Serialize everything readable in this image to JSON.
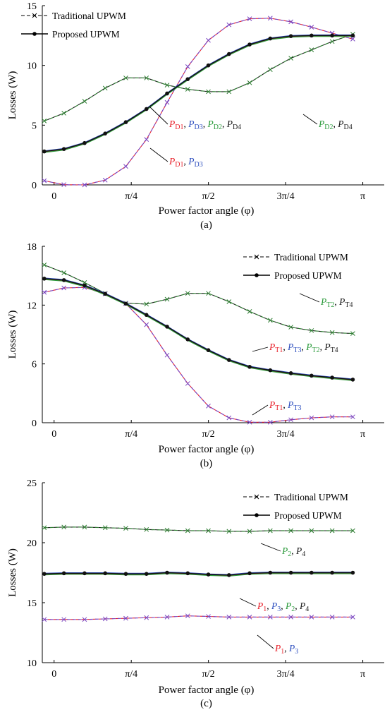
{
  "colors": {
    "phase1": "#e8202a",
    "phase3": "#2e4fbf",
    "phase2": "#2a9a3a",
    "phase4": "#1a1a1a",
    "trad_top": "#2e7d32",
    "trad_bottom": "#7a45c0",
    "proposed": "#111111"
  },
  "chart_data": [
    {
      "type": "line",
      "caption": "(a)",
      "xlabel": "Power factor angle (φ)",
      "ylabel": "Losses (W)",
      "xlim": [
        -0.12,
        3.36
      ],
      "ylim": [
        0,
        15
      ],
      "yticks": [
        0,
        5,
        10,
        15
      ],
      "ytick_labels": [
        "0",
        "5",
        "10",
        "15"
      ],
      "xticks": [
        0,
        0.7854,
        1.5708,
        2.3562,
        3.1416
      ],
      "xtick_labels": [
        "0",
        "π/4",
        "π/2",
        "3π/4",
        "π"
      ],
      "legend": {
        "position": "top-left",
        "entries": [
          {
            "label": "Traditional UPWM",
            "style": "trad"
          },
          {
            "label": "Proposed UPWM",
            "style": "prop"
          }
        ]
      },
      "x": [
        -0.1,
        0.1,
        0.31,
        0.52,
        0.73,
        0.94,
        1.15,
        1.36,
        1.57,
        1.78,
        1.99,
        2.2,
        2.41,
        2.62,
        2.83,
        3.04
      ],
      "series": [
        {
          "group": "trad-high",
          "color_key": "trad_top",
          "values": [
            5.35,
            6.0,
            7.0,
            8.1,
            8.95,
            8.95,
            8.35,
            8.0,
            7.8,
            7.8,
            8.55,
            9.65,
            10.6,
            11.3,
            12.0,
            12.6
          ],
          "style": "dashed-x"
        },
        {
          "group": "trad-low",
          "color_key": "trad_bottom",
          "values": [
            0.35,
            0.02,
            0.0,
            0.4,
            1.55,
            3.8,
            6.9,
            9.9,
            12.1,
            13.4,
            13.9,
            13.95,
            13.65,
            13.2,
            12.7,
            12.2
          ],
          "style": "dashed-x"
        },
        {
          "group": "prop",
          "color_key": "proposed",
          "values": [
            2.8,
            3.0,
            3.5,
            4.3,
            5.25,
            6.35,
            7.65,
            8.85,
            10.0,
            10.95,
            11.75,
            12.25,
            12.45,
            12.5,
            12.5,
            12.5
          ],
          "style": "solid-dot"
        }
      ],
      "annotations": [
        {
          "label": "P_D2, P_D4"
        },
        {
          "label": "P_D1, P_D3, P_D2, P_D4"
        },
        {
          "label": "P_D1, P_D3"
        }
      ]
    },
    {
      "type": "line",
      "caption": "(b)",
      "xlabel": "Power factor angle (φ)",
      "ylabel": "Losses (W)",
      "xlim": [
        -0.12,
        3.36
      ],
      "ylim": [
        0,
        18
      ],
      "yticks": [
        0,
        6,
        12,
        18
      ],
      "ytick_labels": [
        "0",
        "6",
        "12",
        "18"
      ],
      "xticks": [
        0,
        0.7854,
        1.5708,
        2.3562,
        3.1416
      ],
      "xtick_labels": [
        "0",
        "π/4",
        "π/2",
        "3π/4",
        "π"
      ],
      "legend": {
        "position": "top-right",
        "entries": [
          {
            "label": "Traditional UPWM",
            "style": "trad"
          },
          {
            "label": "Proposed UPWM",
            "style": "prop"
          }
        ]
      },
      "x": [
        -0.1,
        0.1,
        0.31,
        0.52,
        0.73,
        0.94,
        1.15,
        1.36,
        1.57,
        1.78,
        1.99,
        2.2,
        2.41,
        2.62,
        2.83,
        3.04
      ],
      "series": [
        {
          "group": "trad-high",
          "color_key": "trad_top",
          "values": [
            16.1,
            15.3,
            14.3,
            13.2,
            12.2,
            12.1,
            12.6,
            13.2,
            13.2,
            12.35,
            11.35,
            10.45,
            9.75,
            9.4,
            9.2,
            9.1
          ],
          "style": "dashed-x"
        },
        {
          "group": "trad-low",
          "color_key": "trad_bottom",
          "values": [
            13.3,
            13.75,
            13.8,
            13.15,
            12.15,
            10.0,
            6.9,
            4.0,
            1.7,
            0.5,
            0.05,
            0.05,
            0.3,
            0.5,
            0.6,
            0.6
          ],
          "style": "dashed-x"
        },
        {
          "group": "prop",
          "color_key": "proposed",
          "values": [
            14.7,
            14.55,
            14.0,
            13.15,
            12.15,
            11.0,
            9.8,
            8.5,
            7.4,
            6.4,
            5.7,
            5.35,
            5.05,
            4.8,
            4.6,
            4.4
          ],
          "style": "solid-dot"
        }
      ],
      "annotations": [
        {
          "label": "P_T2, P_T4"
        },
        {
          "label": "P_T1, P_T3, P_T2, P_T4"
        },
        {
          "label": "P_T1, P_T3"
        }
      ]
    },
    {
      "type": "line",
      "caption": "(c)",
      "xlabel": "Power factor angle (φ)",
      "ylabel": "Losses (W)",
      "xlim": [
        -0.12,
        3.36
      ],
      "ylim": [
        10,
        25
      ],
      "yticks": [
        10,
        15,
        20,
        25
      ],
      "ytick_labels": [
        "10",
        "15",
        "20",
        "25"
      ],
      "xticks": [
        0,
        0.7854,
        1.5708,
        2.3562,
        3.1416
      ],
      "xtick_labels": [
        "0",
        "π/4",
        "π/2",
        "3π/4",
        "π"
      ],
      "legend": {
        "position": "top-right",
        "entries": [
          {
            "label": "Traditional UPWM",
            "style": "trad"
          },
          {
            "label": "Proposed UPWM",
            "style": "prop"
          }
        ]
      },
      "x": [
        -0.1,
        0.1,
        0.31,
        0.52,
        0.73,
        0.94,
        1.15,
        1.36,
        1.57,
        1.78,
        1.99,
        2.2,
        2.41,
        2.62,
        2.83,
        3.04
      ],
      "series": [
        {
          "group": "trad-high",
          "color_key": "trad_top",
          "values": [
            21.25,
            21.3,
            21.3,
            21.25,
            21.2,
            21.1,
            21.05,
            21.0,
            21.0,
            20.95,
            20.95,
            21.0,
            21.0,
            21.0,
            21.0,
            21.0
          ],
          "style": "dashed-x"
        },
        {
          "group": "trad-low",
          "color_key": "trad_bottom",
          "values": [
            13.6,
            13.6,
            13.6,
            13.65,
            13.7,
            13.75,
            13.8,
            13.9,
            13.85,
            13.8,
            13.8,
            13.8,
            13.8,
            13.8,
            13.8,
            13.8
          ],
          "style": "dashed-x"
        },
        {
          "group": "prop",
          "color_key": "proposed",
          "values": [
            17.4,
            17.45,
            17.45,
            17.45,
            17.4,
            17.4,
            17.5,
            17.45,
            17.35,
            17.3,
            17.45,
            17.5,
            17.5,
            17.5,
            17.5,
            17.5
          ],
          "style": "solid-dot"
        }
      ],
      "annotations": [
        {
          "label": "P_2, P_4"
        },
        {
          "label": "P_1, P_3, P_2, P_4"
        },
        {
          "label": "P_1, P_3"
        }
      ]
    }
  ]
}
